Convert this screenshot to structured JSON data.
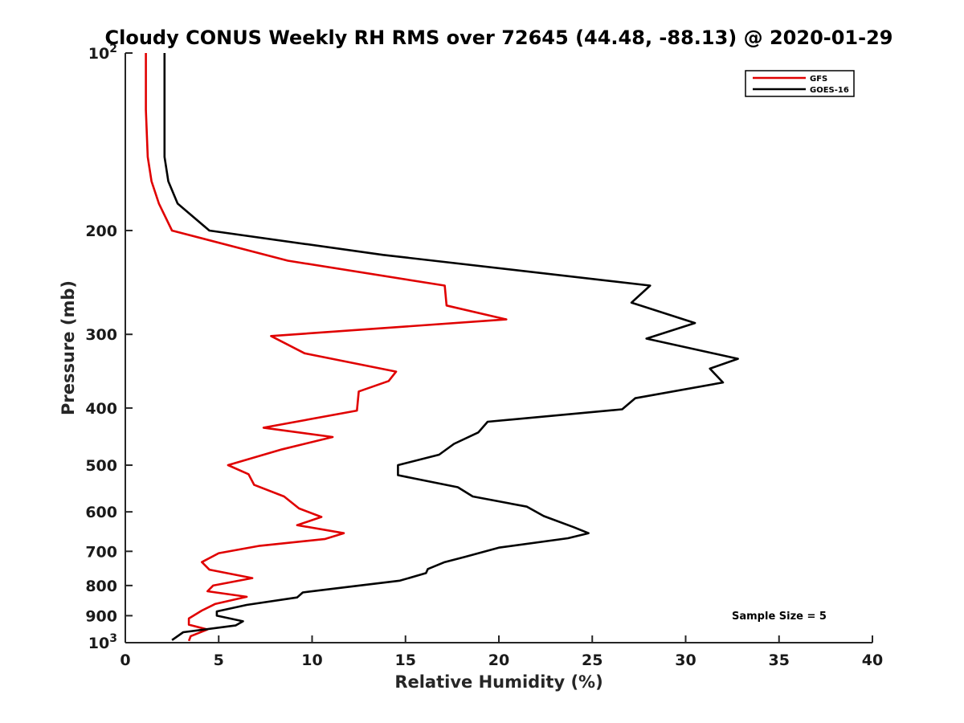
{
  "chart_data": {
    "type": "line",
    "title": "Cloudy CONUS Weekly RH RMS over 72645 (44.48, -88.13) @ 2020-01-29",
    "xlabel": "Relative Humidity (%)",
    "ylabel": "Pressure (mb)",
    "xlim": [
      0,
      40
    ],
    "ylim": [
      100,
      1000
    ],
    "y_scale": "log",
    "y_reversed": true,
    "grid": false,
    "legend_position": "top-right",
    "x_ticks": [
      0,
      5,
      10,
      15,
      20,
      25,
      30,
      35,
      40
    ],
    "y_ticks": [
      {
        "value": 100,
        "label": "10",
        "sup": "2"
      },
      {
        "value": 200,
        "label": "200"
      },
      {
        "value": 300,
        "label": "300"
      },
      {
        "value": 400,
        "label": "400"
      },
      {
        "value": 500,
        "label": "500"
      },
      {
        "value": 600,
        "label": "600"
      },
      {
        "value": 700,
        "label": "700"
      },
      {
        "value": 800,
        "label": "800"
      },
      {
        "value": 900,
        "label": "900"
      },
      {
        "value": 1000,
        "label": "10",
        "sup": "3"
      }
    ],
    "series": [
      {
        "name": "GFS",
        "color": "#e00000",
        "points": [
          [
            1.1,
            100
          ],
          [
            1.1,
            125
          ],
          [
            1.2,
            150
          ],
          [
            1.4,
            165
          ],
          [
            1.8,
            180
          ],
          [
            2.5,
            200
          ],
          [
            8.7,
            225
          ],
          [
            17.1,
            248
          ],
          [
            17.2,
            268
          ],
          [
            20.4,
            283
          ],
          [
            7.8,
            302
          ],
          [
            9.6,
            323
          ],
          [
            14.5,
            347
          ],
          [
            14.1,
            360
          ],
          [
            12.5,
            375
          ],
          [
            12.4,
            404
          ],
          [
            7.4,
            432
          ],
          [
            11.1,
            448
          ],
          [
            8.4,
            470
          ],
          [
            5.5,
            500
          ],
          [
            6.6,
            518
          ],
          [
            6.9,
            540
          ],
          [
            8.5,
            565
          ],
          [
            9.3,
            592
          ],
          [
            10.5,
            612
          ],
          [
            9.2,
            632
          ],
          [
            11.7,
            652
          ],
          [
            10.7,
            667
          ],
          [
            7.2,
            685
          ],
          [
            5.0,
            705
          ],
          [
            4.1,
            730
          ],
          [
            4.5,
            752
          ],
          [
            6.8,
            777
          ],
          [
            4.7,
            800
          ],
          [
            4.4,
            818
          ],
          [
            6.5,
            836
          ],
          [
            4.8,
            860
          ],
          [
            4.1,
            882
          ],
          [
            3.4,
            910
          ],
          [
            3.4,
            932
          ],
          [
            4.4,
            950
          ],
          [
            3.5,
            975
          ],
          [
            3.4,
            993
          ]
        ]
      },
      {
        "name": "GOES-16",
        "color": "#000000",
        "points": [
          [
            2.1,
            100
          ],
          [
            2.1,
            125
          ],
          [
            2.1,
            150
          ],
          [
            2.3,
            165
          ],
          [
            2.8,
            180
          ],
          [
            4.5,
            200
          ],
          [
            13.8,
            220
          ],
          [
            28.1,
            248
          ],
          [
            27.1,
            265
          ],
          [
            30.5,
            287
          ],
          [
            27.9,
            305
          ],
          [
            32.8,
            330
          ],
          [
            31.3,
            343
          ],
          [
            32.0,
            362
          ],
          [
            27.3,
            385
          ],
          [
            26.6,
            402
          ],
          [
            19.4,
            422
          ],
          [
            18.9,
            440
          ],
          [
            17.6,
            460
          ],
          [
            16.8,
            480
          ],
          [
            14.6,
            500
          ],
          [
            14.6,
            520
          ],
          [
            17.8,
            545
          ],
          [
            18.6,
            565
          ],
          [
            21.5,
            588
          ],
          [
            22.4,
            610
          ],
          [
            24.0,
            637
          ],
          [
            24.8,
            652
          ],
          [
            23.7,
            665
          ],
          [
            20.0,
            690
          ],
          [
            18.2,
            715
          ],
          [
            17.1,
            730
          ],
          [
            16.2,
            750
          ],
          [
            16.1,
            762
          ],
          [
            14.7,
            785
          ],
          [
            11.8,
            805
          ],
          [
            9.5,
            822
          ],
          [
            9.2,
            838
          ],
          [
            6.5,
            863
          ],
          [
            4.9,
            885
          ],
          [
            4.9,
            900
          ],
          [
            6.3,
            920
          ],
          [
            5.9,
            935
          ],
          [
            3.1,
            960
          ],
          [
            2.5,
            990
          ]
        ]
      }
    ],
    "annotations": [
      "Sample Size = 5"
    ]
  }
}
